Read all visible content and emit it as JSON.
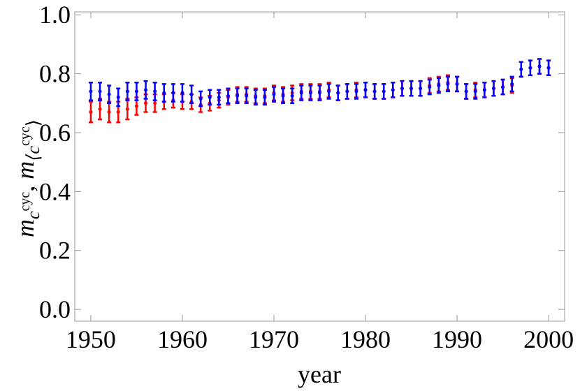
{
  "chart_data": {
    "type": "errorbar",
    "xlabel": "year",
    "ylabel": [
      {
        "text": "m",
        "level": 0,
        "italic": true
      },
      {
        "text": "c",
        "level": 1,
        "italic": true
      },
      {
        "text": "cyc",
        "level": 2,
        "italic": false
      },
      {
        "text": ", ",
        "level": 0,
        "italic": false
      },
      {
        "text": "m",
        "level": 0,
        "italic": true
      },
      {
        "text": "⟨c",
        "level": 1,
        "italic": true
      },
      {
        "text": "cyc",
        "level": 2,
        "italic": false
      },
      {
        "text": "⟩",
        "level": 1,
        "italic": false
      }
    ],
    "x": [
      1950,
      1951,
      1952,
      1953,
      1954,
      1955,
      1956,
      1957,
      1958,
      1959,
      1960,
      1961,
      1962,
      1963,
      1964,
      1965,
      1966,
      1967,
      1968,
      1969,
      1970,
      1971,
      1972,
      1973,
      1974,
      1975,
      1976,
      1977,
      1978,
      1979,
      1980,
      1981,
      1982,
      1983,
      1984,
      1985,
      1986,
      1987,
      1988,
      1989,
      1990,
      1991,
      1992,
      1993,
      1994,
      1995,
      1996,
      1997,
      1998,
      1999,
      2000
    ],
    "series": [
      {
        "color": "#ff0000",
        "values": [
          0.67,
          0.68,
          0.67,
          0.67,
          0.68,
          0.69,
          0.7,
          0.7,
          0.705,
          0.71,
          0.705,
          0.705,
          0.695,
          0.7,
          0.71,
          0.72,
          0.73,
          0.73,
          0.725,
          0.725,
          0.735,
          0.73,
          0.735,
          0.74,
          0.74,
          0.74,
          0.745,
          0.735,
          0.74,
          0.745,
          0.745,
          0.74,
          0.74,
          0.745,
          0.75,
          0.75,
          0.75,
          0.76,
          0.765,
          0.77,
          0.765,
          0.74,
          0.745,
          0.745,
          0.75,
          0.755,
          0.76,
          0.815,
          0.82,
          0.825,
          0.82
        ],
        "errors": [
          0.035,
          0.035,
          0.035,
          0.035,
          0.035,
          0.03,
          0.03,
          0.03,
          0.025,
          0.025,
          0.025,
          0.025,
          0.025,
          0.025,
          0.025,
          0.025,
          0.025,
          0.025,
          0.025,
          0.025,
          0.025,
          0.025,
          0.025,
          0.025,
          0.025,
          0.025,
          0.025,
          0.025,
          0.025,
          0.025,
          0.025,
          0.025,
          0.025,
          0.025,
          0.025,
          0.025,
          0.025,
          0.025,
          0.025,
          0.025,
          0.025,
          0.025,
          0.025,
          0.025,
          0.025,
          0.025,
          0.025,
          0.025,
          0.025,
          0.025,
          0.025
        ]
      },
      {
        "color": "#0000ff",
        "values": [
          0.74,
          0.74,
          0.73,
          0.72,
          0.74,
          0.74,
          0.745,
          0.74,
          0.735,
          0.735,
          0.735,
          0.73,
          0.715,
          0.72,
          0.72,
          0.725,
          0.725,
          0.725,
          0.72,
          0.72,
          0.73,
          0.725,
          0.725,
          0.735,
          0.735,
          0.735,
          0.74,
          0.735,
          0.74,
          0.74,
          0.745,
          0.74,
          0.74,
          0.745,
          0.75,
          0.75,
          0.75,
          0.755,
          0.76,
          0.765,
          0.765,
          0.74,
          0.74,
          0.745,
          0.75,
          0.755,
          0.765,
          0.815,
          0.82,
          0.825,
          0.82
        ],
        "errors": [
          0.03,
          0.03,
          0.03,
          0.03,
          0.03,
          0.03,
          0.03,
          0.03,
          0.03,
          0.03,
          0.03,
          0.03,
          0.025,
          0.025,
          0.025,
          0.025,
          0.025,
          0.025,
          0.025,
          0.025,
          0.025,
          0.025,
          0.025,
          0.025,
          0.025,
          0.025,
          0.025,
          0.025,
          0.025,
          0.025,
          0.025,
          0.025,
          0.025,
          0.025,
          0.025,
          0.025,
          0.025,
          0.025,
          0.025,
          0.025,
          0.025,
          0.025,
          0.025,
          0.025,
          0.025,
          0.025,
          0.025,
          0.025,
          0.025,
          0.025,
          0.025
        ]
      }
    ],
    "xlim": [
      1948.25,
      2001.75
    ],
    "ylim": [
      -0.04,
      1.01
    ],
    "xticks": [
      1950,
      1960,
      1970,
      1980,
      1990,
      2000
    ],
    "yticks": [
      {
        "value": 0,
        "label": "0.0"
      },
      0.2,
      0.4,
      0.6,
      0.8,
      {
        "value": 1,
        "label": "1.0"
      }
    ]
  }
}
